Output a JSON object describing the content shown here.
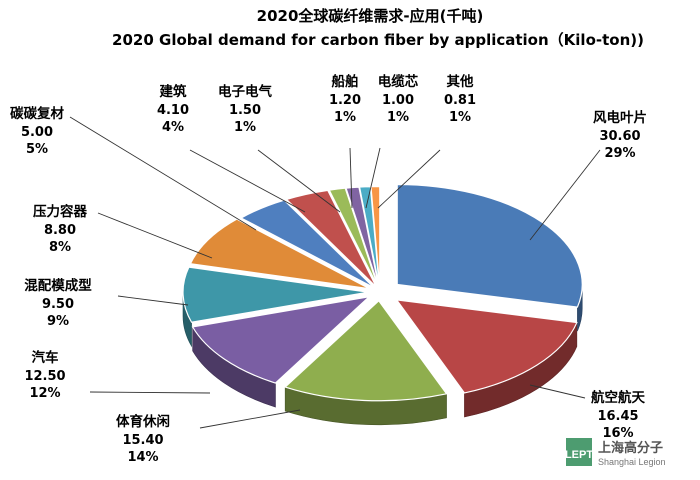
{
  "chart_data": {
    "type": "pie",
    "style": "3d-exploded",
    "title": "2020全球碳纤维需求-应用(千吨)",
    "subtitle": "2020 Global demand for carbon fiber by application（Kilo-ton))",
    "slices": [
      {
        "name": "风电叶片",
        "value": "30.60",
        "percent": "29%",
        "color": "#4A7BB7"
      },
      {
        "name": "航空航天",
        "value": "16.45",
        "percent": "16%",
        "color": "#B84646"
      },
      {
        "name": "体育休闲",
        "value": "15.40",
        "percent": "14%",
        "color": "#8FAE4E"
      },
      {
        "name": "汽车",
        "value": "12.50",
        "percent": "12%",
        "color": "#7A5EA3"
      },
      {
        "name": "混配模成型",
        "value": "9.50",
        "percent": "9%",
        "color": "#3E97A8"
      },
      {
        "name": "压力容器",
        "value": "8.80",
        "percent": "8%",
        "color": "#E08B38"
      },
      {
        "name": "碳碳复材",
        "value": "5.00",
        "percent": "5%",
        "color": "#4F7FBF"
      },
      {
        "name": "建筑",
        "value": "4.10",
        "percent": "4%",
        "color": "#C0504D"
      },
      {
        "name": "电子电气",
        "value": "1.50",
        "percent": "1%",
        "color": "#9BBB59"
      },
      {
        "name": "船舶",
        "value": "1.20",
        "percent": "1%",
        "color": "#8064A2"
      },
      {
        "name": "电缆芯",
        "value": "1.00",
        "percent": "1%",
        "color": "#4BACC6"
      },
      {
        "name": "其他",
        "value": "0.81",
        "percent": "1%",
        "color": "#F79646"
      }
    ]
  },
  "watermark": {
    "badge": "LEPT",
    "name": "上海高分子",
    "sub": "Shanghai Legion"
  }
}
